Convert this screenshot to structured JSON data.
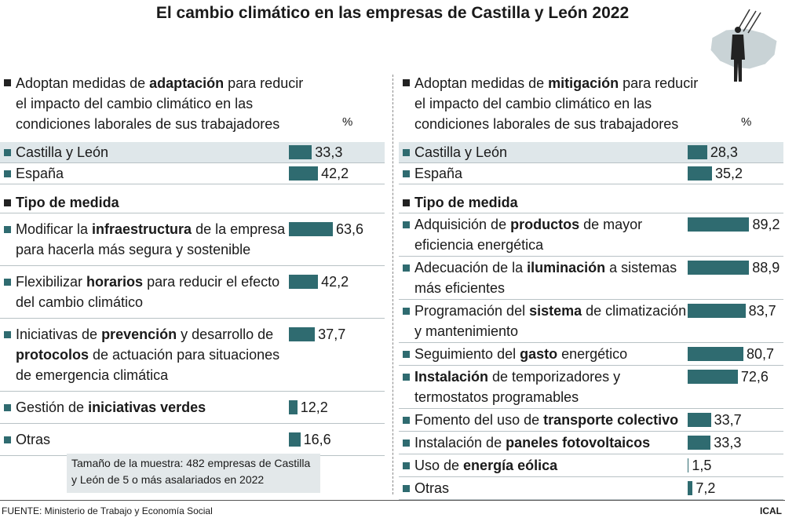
{
  "title": "El cambio climático en las empresas de Castilla y León 2022",
  "color": "#2f6b70",
  "chart_data": [
    {
      "type": "bar",
      "title": [
        "Adoptan medidas de ",
        "adaptación",
        " para reducir el impacto del cambio climático en las condiciones laborales de sus trabajadores"
      ],
      "unit": "%",
      "overview": {
        "categories": [
          "Castilla y León",
          "España"
        ],
        "values": [
          33.3,
          42.2
        ],
        "value_labels": [
          "33,3",
          "42,2"
        ]
      },
      "breakdown": {
        "title": "Tipo de medida",
        "categories": [
          [
            "Modificar la ",
            "infraestructura",
            " de la empresa para hacerla más segura y sostenible"
          ],
          [
            "Flexibilizar ",
            "horarios",
            " para reducir el efecto del cambio climático"
          ],
          [
            "Iniciativas de ",
            "prevención",
            " y desarrollo de ",
            "protocolos",
            " de actuación para situaciones de emergencia climática"
          ],
          [
            "Gestión de ",
            "iniciativas verdes"
          ],
          "Otras"
        ],
        "values": [
          63.6,
          42.2,
          37.7,
          12.2,
          16.6
        ],
        "value_labels": [
          "63,6",
          "42,2",
          "37,7",
          "12,2",
          "16,6"
        ]
      }
    },
    {
      "type": "bar",
      "title": [
        "Adoptan medidas de ",
        "mitigación",
        " para reducir el impacto del cambio climático en las condiciones laborales de sus trabajadores"
      ],
      "unit": "%",
      "overview": {
        "categories": [
          "Castilla y León",
          "España"
        ],
        "values": [
          28.3,
          35.2
        ],
        "value_labels": [
          "28,3",
          "35,2"
        ]
      },
      "breakdown": {
        "title": "Tipo de medida",
        "categories": [
          [
            "Adquisición de ",
            "productos",
            " de mayor eficiencia energética"
          ],
          [
            "Adecuación de la ",
            "iluminación",
            " a sistemas más eficientes"
          ],
          [
            "Programación del ",
            "sistema",
            " de climatización y mantenimiento"
          ],
          [
            "Seguimiento del ",
            "gasto",
            " energético"
          ],
          [
            "",
            "Instalación",
            " de temporizadores y termostatos programables"
          ],
          [
            "Fomento del uso de ",
            "transporte colectivo"
          ],
          [
            "Instalación de ",
            "paneles fotovoltaicos"
          ],
          [
            "Uso de ",
            "energía eólica"
          ],
          "Otras"
        ],
        "values": [
          89.2,
          88.9,
          83.7,
          80.7,
          72.6,
          33.7,
          33.3,
          1.5,
          7.2
        ],
        "value_labels": [
          "89,2",
          "88,9",
          "83,7",
          "80,7",
          "72,6",
          "33,7",
          "33,3",
          "1,5",
          "7,2"
        ]
      }
    }
  ],
  "note": "Tamaño de la muestra: 482 empresas de Castilla y León de 5 o más asalariados en 2022",
  "source": "FUENTE: Ministerio de Trabajo y Economía Social",
  "credit": "ICAL"
}
